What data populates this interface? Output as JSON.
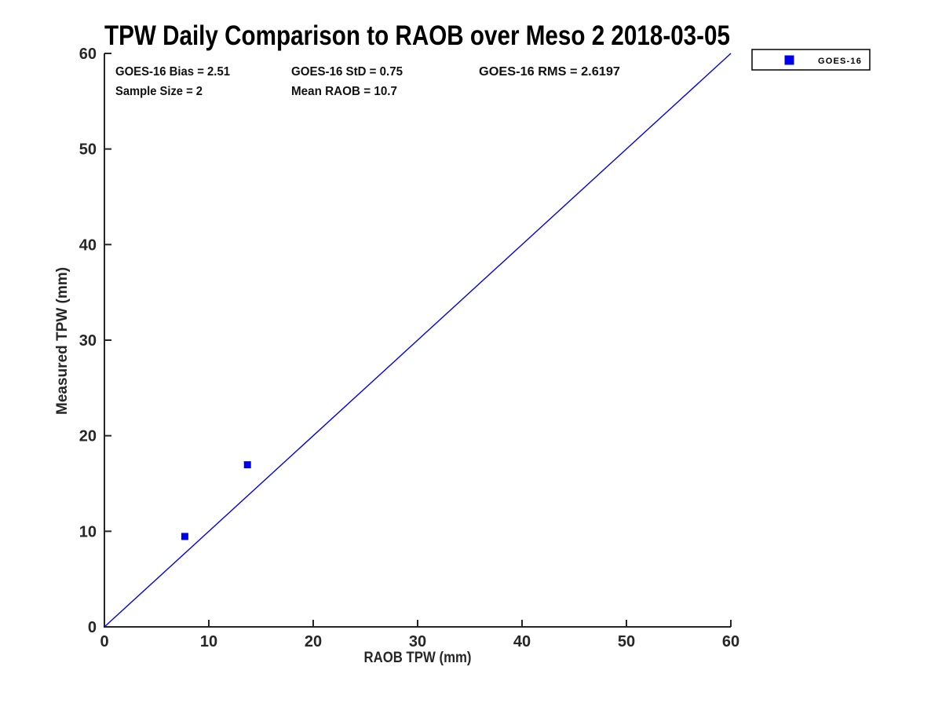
{
  "chart_data": {
    "type": "scatter",
    "title": "TPW Daily Comparison to RAOB over Meso 2 2018-03-05",
    "xlabel": "RAOB TPW (mm)",
    "ylabel": "Measured TPW (mm)",
    "xlim": [
      0,
      60
    ],
    "ylim": [
      0,
      60
    ],
    "xticks": [
      0,
      10,
      20,
      30,
      40,
      50,
      60
    ],
    "yticks": [
      0,
      10,
      20,
      30,
      40,
      50,
      60
    ],
    "grid": false,
    "accent_color": "#0000EE",
    "axis_color": "#262626",
    "series": [
      {
        "name": "GOES-16",
        "marker": "square",
        "color": "#0000EE",
        "points": [
          {
            "x": 7.7,
            "y": 9.46
          },
          {
            "x": 13.7,
            "y": 16.96
          }
        ]
      }
    ],
    "reference_line": {
      "name": "identity-line",
      "from": {
        "x": 0,
        "y": 0
      },
      "to": {
        "x": 60,
        "y": 60
      },
      "color": "#0000EE"
    },
    "legend": {
      "position": "upper-right-outside",
      "entries": [
        {
          "label": "GOES-16",
          "marker": "square",
          "color": "#0000EE"
        }
      ]
    },
    "annotations": [
      {
        "text": "GOES-16 Bias = 2.51",
        "row": 1,
        "col": 1
      },
      {
        "text": "GOES-16 StD = 0.75",
        "row": 1,
        "col": 2
      },
      {
        "text": "GOES-16 RMS = 2.6197",
        "row": 1,
        "col": 3
      },
      {
        "text": "Sample Size = 2",
        "row": 2,
        "col": 1
      },
      {
        "text": "Mean RAOB = 10.7",
        "row": 2,
        "col": 2
      }
    ]
  }
}
